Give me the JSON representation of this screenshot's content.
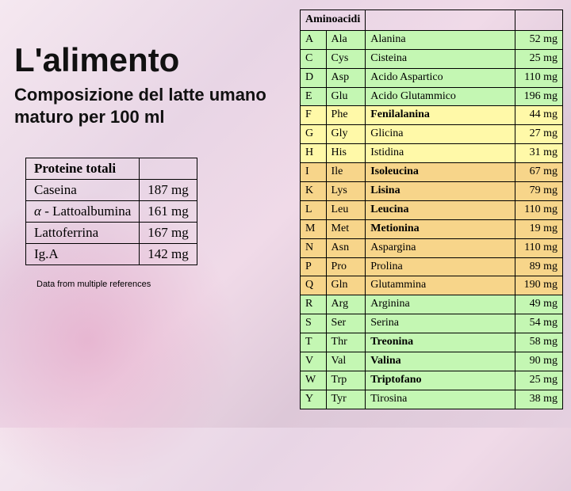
{
  "title": "L'alimento",
  "subtitle": "Composizione del latte umano maturo per 100 ml",
  "credit": "Data from multiple references",
  "proteins": {
    "header": "Proteine totali",
    "rows": [
      {
        "name": "Caseina",
        "value": "187 mg"
      },
      {
        "name": "α - Lattoalbumina",
        "value": "161 mg"
      },
      {
        "name": "Lattoferrina",
        "value": "167 mg"
      },
      {
        "name": "Ig.A",
        "value": "142 mg"
      }
    ]
  },
  "amino": {
    "header": "Aminoacidi",
    "groups": [
      {
        "color": "#c4f7b3",
        "rows": [
          {
            "code": "A",
            "abbr": "Ala",
            "name": "Alanina",
            "mg": "52 mg"
          },
          {
            "code": "C",
            "abbr": "Cys",
            "name": "Cisteina",
            "mg": "25 mg"
          },
          {
            "code": "D",
            "abbr": "Asp",
            "name": "Acido Aspartico",
            "mg": "110 mg"
          },
          {
            "code": "E",
            "abbr": "Glu",
            "name": "Acido Glutammico",
            "mg": "196 mg"
          }
        ]
      },
      {
        "color": "#fff9a8",
        "rows": [
          {
            "code": "F",
            "abbr": "Phe",
            "name": "Fenilalanina",
            "mg": "44 mg",
            "bold": true
          },
          {
            "code": "G",
            "abbr": "Gly",
            "name": "Glicina",
            "mg": "27 mg"
          },
          {
            "code": "H",
            "abbr": "His",
            "name": "Istidina",
            "mg": "31 mg"
          }
        ]
      },
      {
        "color": "#f7d58a",
        "rows": [
          {
            "code": "I",
            "abbr": "Ile",
            "name": "Isoleucina",
            "mg": "67 mg",
            "bold": true
          },
          {
            "code": "K",
            "abbr": "Lys",
            "name": "Lisina",
            "mg": "79 mg",
            "bold": true
          },
          {
            "code": "L",
            "abbr": "Leu",
            "name": "Leucina",
            "mg": "110 mg",
            "bold": true
          },
          {
            "code": "M",
            "abbr": "Met",
            "name": "Metionina",
            "mg": "19 mg",
            "bold": true
          },
          {
            "code": "N",
            "abbr": "Asn",
            "name": "Aspargina",
            "mg": "110 mg"
          },
          {
            "code": "P",
            "abbr": "Pro",
            "name": "Prolina",
            "mg": "89 mg"
          },
          {
            "code": "Q",
            "abbr": "Gln",
            "name": "Glutammina",
            "mg": "190 mg"
          }
        ]
      },
      {
        "color": "#c4f7b3",
        "rows": [
          {
            "code": "R",
            "abbr": "Arg",
            "name": "Arginina",
            "mg": "49 mg"
          },
          {
            "code": "S",
            "abbr": "Ser",
            "name": "Serina",
            "mg": "54 mg"
          },
          {
            "code": "T",
            "abbr": "Thr",
            "name": "Treonina",
            "mg": "58 mg",
            "bold": true
          },
          {
            "code": "V",
            "abbr": "Val",
            "name": "Valina",
            "mg": "90 mg",
            "bold": true
          },
          {
            "code": "W",
            "abbr": "Trp",
            "name": "Triptofano",
            "mg": "25 mg",
            "bold": true
          },
          {
            "code": "Y",
            "abbr": "Tyr",
            "name": "Tirosina",
            "mg": "38 mg"
          }
        ]
      }
    ]
  }
}
